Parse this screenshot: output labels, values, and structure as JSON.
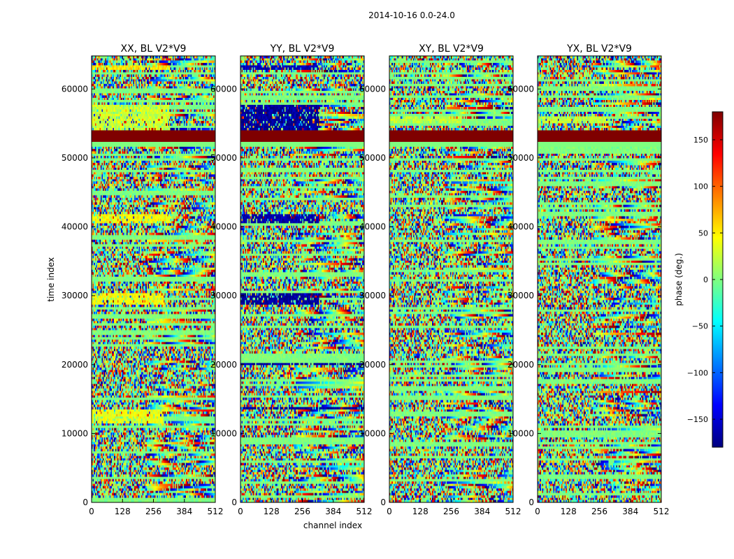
{
  "chart_data": {
    "type": "heatmap",
    "suptitle": "2014-10-16 0.0-24.0",
    "xlabel": "channel index",
    "ylabel": "time index",
    "x_ticks": [
      0,
      128,
      256,
      384,
      512
    ],
    "y_ticks": [
      0,
      10000,
      20000,
      30000,
      40000,
      50000,
      60000
    ],
    "xlim": [
      0,
      512
    ],
    "ylim": [
      0,
      64800
    ],
    "panels": [
      {
        "title": "XX, BL V2*V9",
        "flag_bands": [
          {
            "y0": 52200,
            "y1": 54000,
            "value": 180
          },
          {
            "y0": 51500,
            "y1": 52200,
            "value": 0
          }
        ],
        "bias_bands": [
          {
            "y0": 62700,
            "y1": 63500,
            "x0": 0,
            "x1": 325,
            "value": 55
          },
          {
            "y0": 53800,
            "y1": 57800,
            "x0": 0,
            "x1": 325,
            "value": 30
          },
          {
            "y0": 40500,
            "y1": 42000,
            "x0": 0,
            "x1": 325,
            "value": 45
          },
          {
            "y0": 28600,
            "y1": 30400,
            "x0": 0,
            "x1": 300,
            "value": 45
          },
          {
            "y0": 11500,
            "y1": 13500,
            "x0": 0,
            "x1": 300,
            "value": 40
          }
        ]
      },
      {
        "title": "YY, BL V2*V9",
        "flag_bands": [
          {
            "y0": 52200,
            "y1": 54000,
            "value": 180
          },
          {
            "y0": 51500,
            "y1": 52200,
            "value": 0
          }
        ],
        "bias_bands": [
          {
            "y0": 62700,
            "y1": 63500,
            "x0": 0,
            "x1": 325,
            "value": -160
          },
          {
            "y0": 53800,
            "y1": 57800,
            "x0": 0,
            "x1": 325,
            "value": -170
          },
          {
            "y0": 40500,
            "y1": 42000,
            "x0": 0,
            "x1": 325,
            "value": -165
          },
          {
            "y0": 28600,
            "y1": 30400,
            "x0": 0,
            "x1": 325,
            "value": -170
          },
          {
            "y0": 19800,
            "y1": 20200,
            "x0": 0,
            "x1": 512,
            "value": -170
          },
          {
            "y0": 13600,
            "y1": 14000,
            "x0": 0,
            "x1": 512,
            "value": -170
          }
        ]
      },
      {
        "title": "XY, BL V2*V9",
        "flag_bands": [
          {
            "y0": 52200,
            "y1": 54000,
            "value": 180
          },
          {
            "y0": 51500,
            "y1": 52200,
            "value": 0
          }
        ],
        "bias_bands": [
          {
            "y0": 55000,
            "y1": 56000,
            "x0": 0,
            "x1": 300,
            "value": 25
          }
        ]
      },
      {
        "title": "YX, BL V2*V9",
        "flag_bands": [
          {
            "y0": 52200,
            "y1": 54000,
            "value": 180
          },
          {
            "y0": 51500,
            "y1": 52200,
            "value": 0
          }
        ],
        "bias_bands": [
          {
            "y0": 55000,
            "y1": 56000,
            "x0": 0,
            "x1": 300,
            "value": 25
          }
        ]
      }
    ],
    "colorbar": {
      "label": "phase (deg.)",
      "range": [
        -180,
        180
      ],
      "ticks": [
        150,
        100,
        50,
        0,
        -50,
        -100,
        -150
      ],
      "tick_labels": [
        "150",
        "100",
        "50",
        "0",
        "−50",
        "−100",
        "−150"
      ],
      "colormap": "jet",
      "colormap_stops": [
        "#00007f",
        "#0000ff",
        "#007fff",
        "#00ffff",
        "#7fff7f",
        "#ffff00",
        "#ff7f00",
        "#ff0000",
        "#7f0000"
      ]
    }
  }
}
